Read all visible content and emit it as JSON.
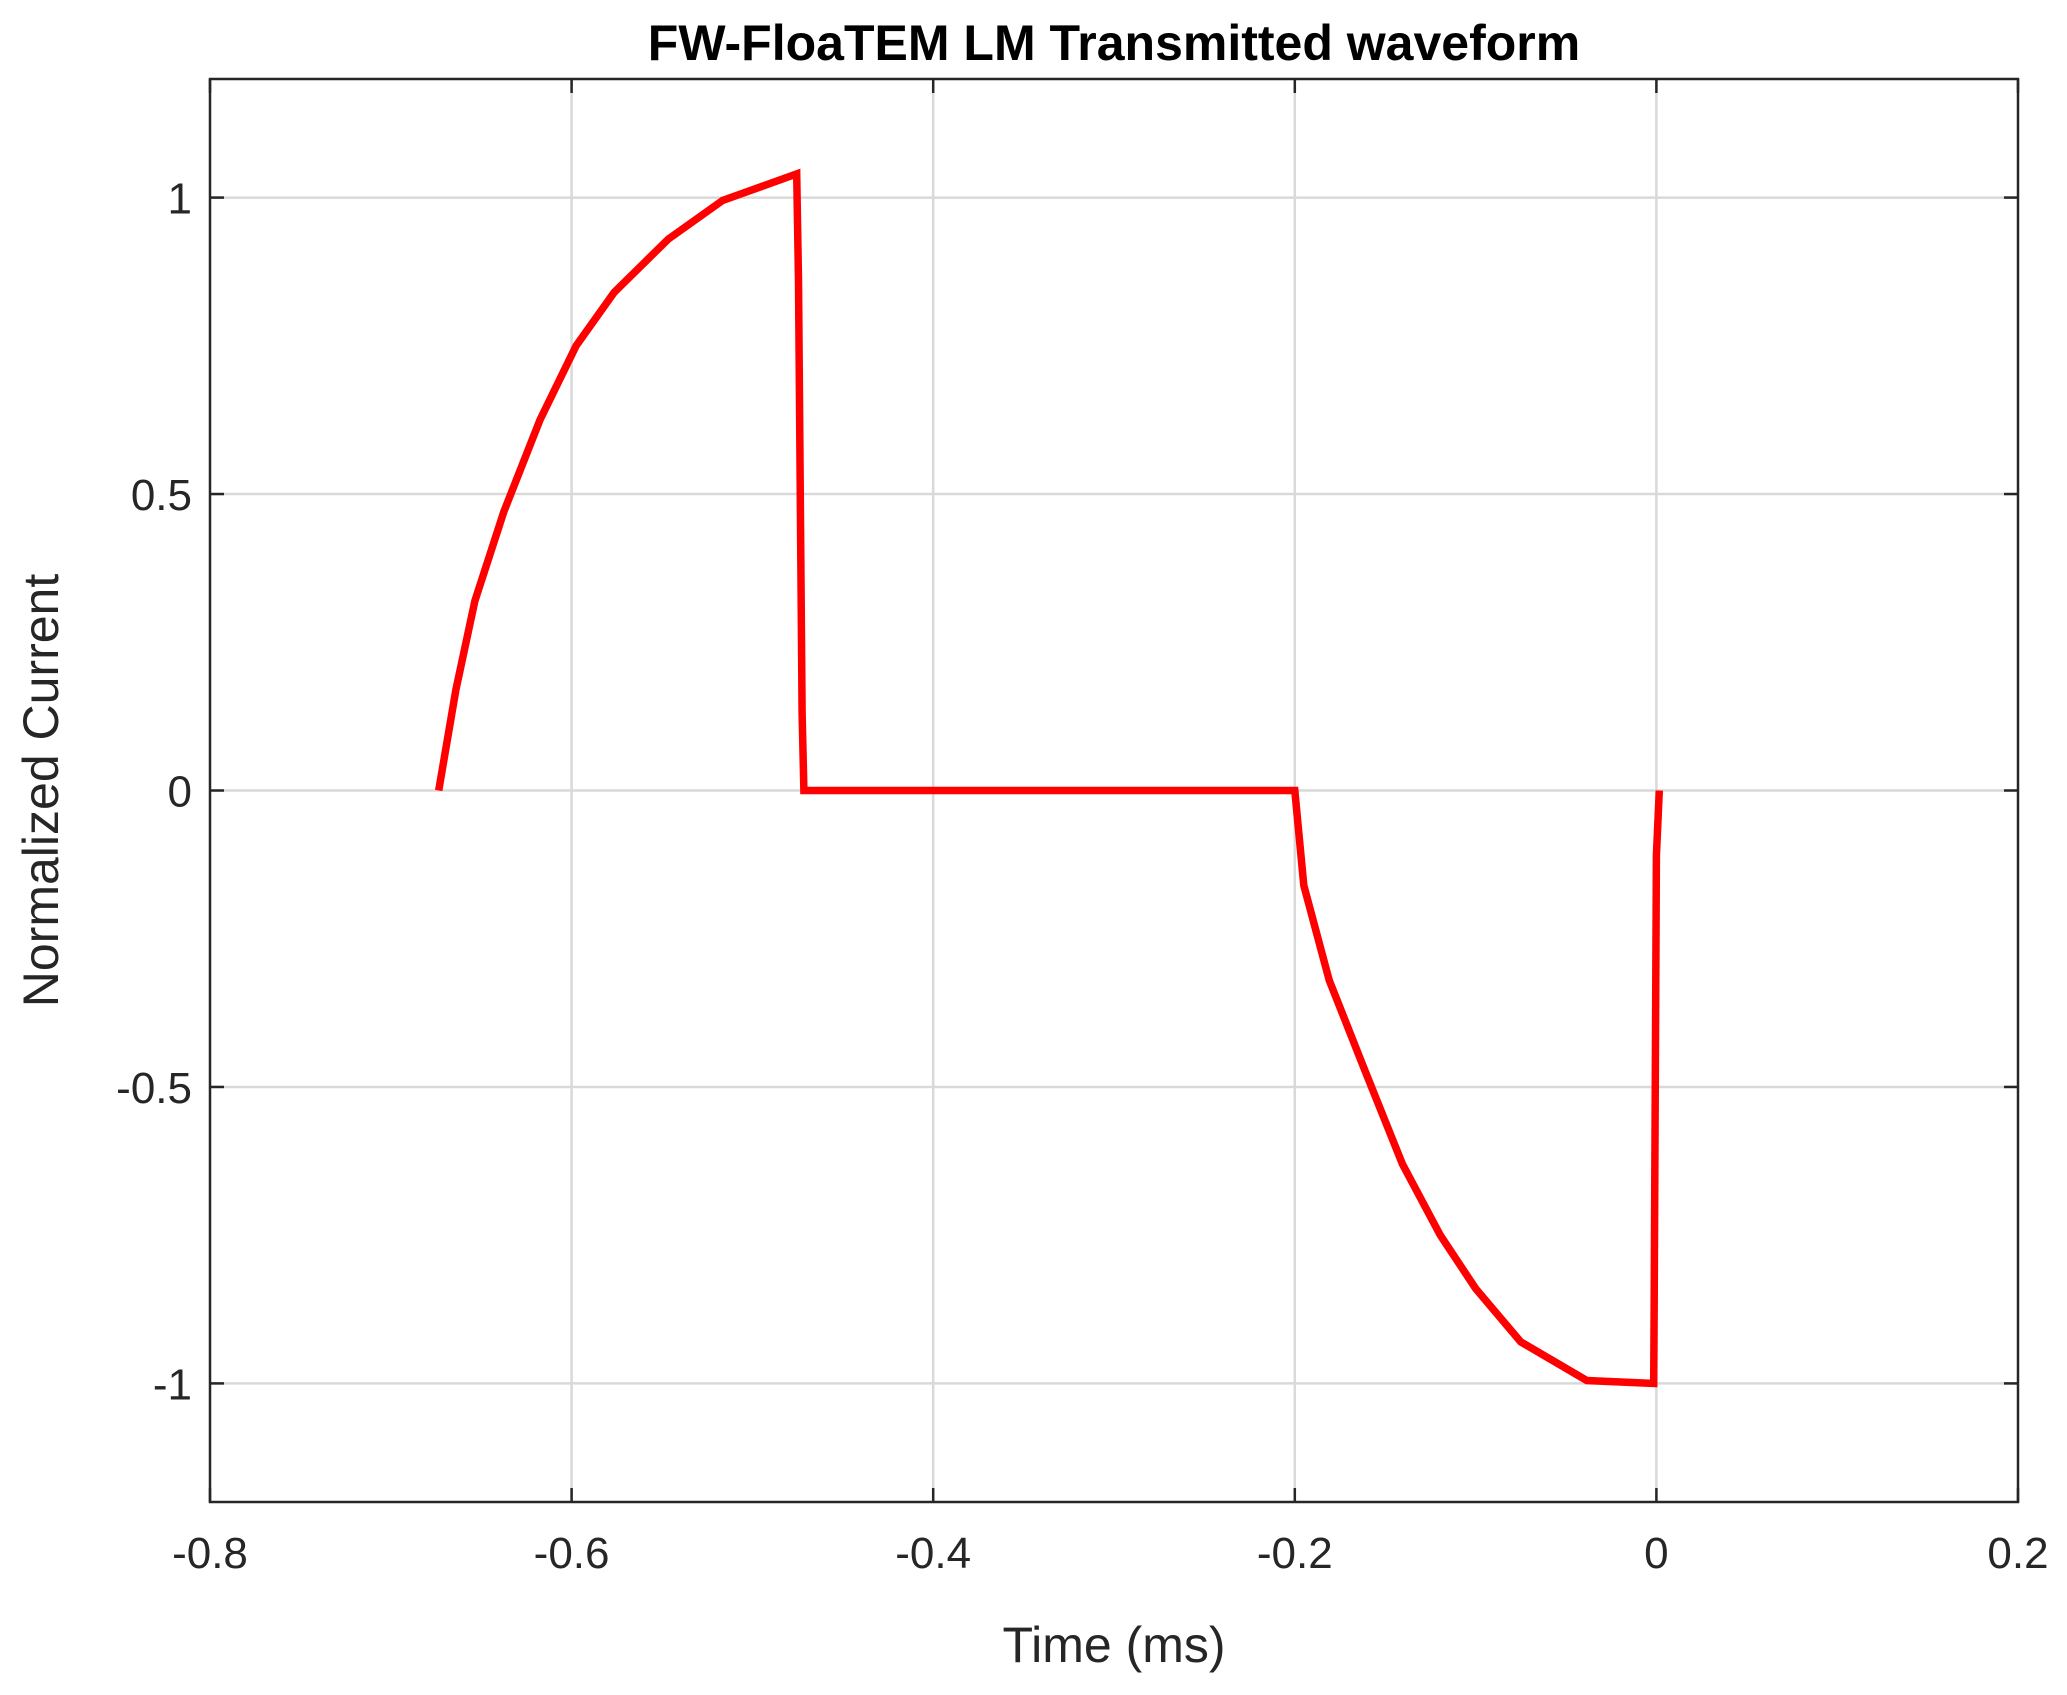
{
  "chart_data": {
    "type": "line",
    "title": "FW-FloaTEM LM Transmitted waveform",
    "xlabel": "Time (ms)",
    "ylabel": "Normalized Current",
    "xlim": [
      -0.8,
      0.2
    ],
    "ylim": [
      -1.2,
      1.2
    ],
    "xticks": [
      -0.8,
      -0.6,
      -0.4,
      -0.2,
      0,
      0.2
    ],
    "xtick_labels": [
      "-0.8",
      "-0.6",
      "-0.4",
      "-0.2",
      "0",
      "0.2"
    ],
    "yticks": [
      -1,
      -0.5,
      0,
      0.5,
      1
    ],
    "ytick_labels": [
      "-1",
      "-0.5",
      "0",
      "0.5",
      "1"
    ],
    "grid": true,
    "legend": null,
    "series": [
      {
        "color": "#ff0000",
        "x": [
          -0.6735,
          -0.664,
          -0.6535,
          -0.6375,
          -0.6175,
          -0.5975,
          -0.5765,
          -0.5465,
          -0.5165,
          -0.4755,
          -0.4745,
          -0.4725,
          -0.4715,
          -0.2,
          -0.195,
          -0.181,
          -0.1615,
          -0.1405,
          -0.1195,
          -0.1,
          -0.075,
          -0.0385,
          -0.0015,
          -0.0012,
          0.0,
          0.0016
        ],
        "y": [
          0.0,
          0.17,
          0.32,
          0.47,
          0.625,
          0.75,
          0.84,
          0.93,
          0.995,
          1.04,
          0.86,
          0.13,
          0.0,
          0.0,
          -0.16,
          -0.32,
          -0.47,
          -0.63,
          -0.75,
          -0.84,
          -0.93,
          -0.995,
          -1.0,
          -0.86,
          -0.11,
          0.0
        ]
      }
    ]
  }
}
